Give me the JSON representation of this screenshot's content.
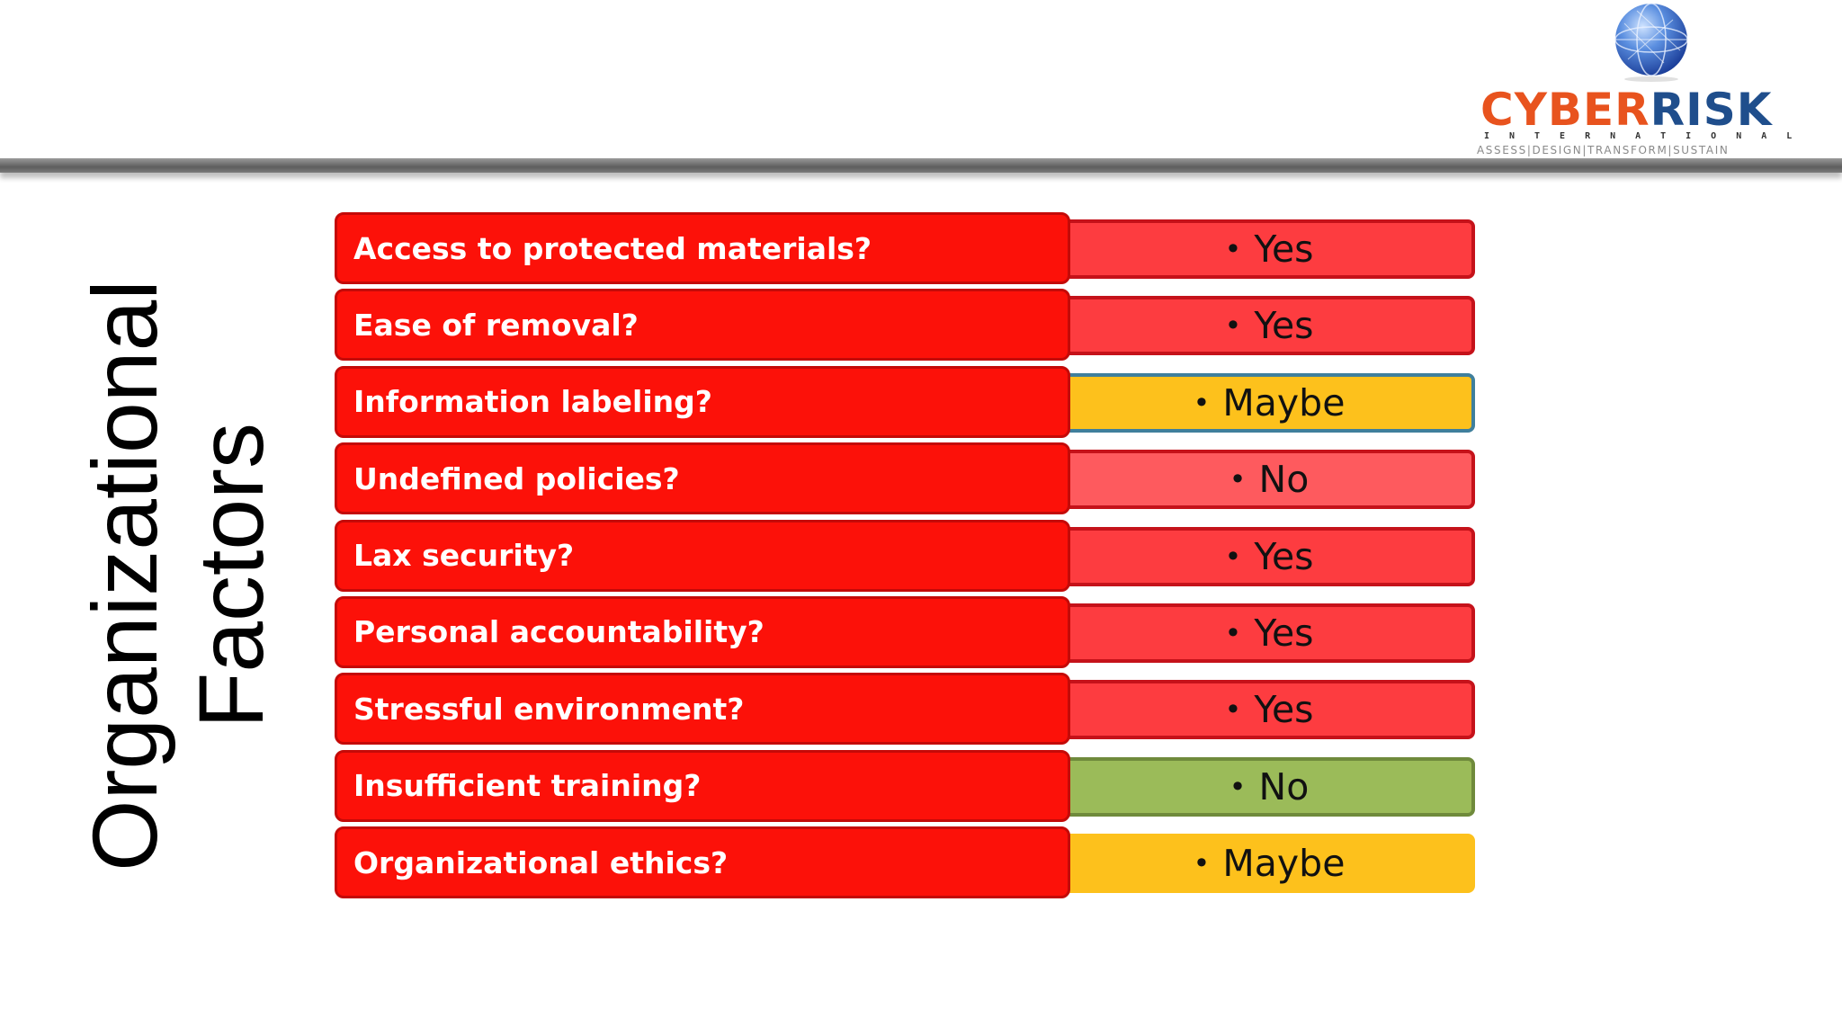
{
  "logo": {
    "word_cyber": "CYBER",
    "word_risk": "RISK",
    "international": "INTERNATIONAL",
    "tagline": "ASSESS|DESIGN|TRANSFORM|SUSTAIN",
    "icon": "globe-icon"
  },
  "title": {
    "line1": "Organizational",
    "line2": "Factors"
  },
  "colors": {
    "question_fill": "#fc1109",
    "question_border": "#c40a08",
    "yes_fill": "#fd3c40",
    "no_light_fill": "#fe5a5e",
    "maybe_fill": "#fdc11c",
    "no_green_fill": "#9bbb59"
  },
  "rows": [
    {
      "question": "Access to protected materials?",
      "answer": "Yes",
      "bullet": "•",
      "fill": "#fd3c40",
      "border": "#c5121a"
    },
    {
      "question": "Ease of removal?",
      "answer": "Yes",
      "bullet": "•",
      "fill": "#fd3c40",
      "border": "#c5121a"
    },
    {
      "question": "Information labeling?",
      "answer": "Maybe",
      "bullet": "•",
      "fill": "#fdc11c",
      "border": "#3f7f9c"
    },
    {
      "question": "Undefined policies?",
      "answer": "No",
      "bullet": "•",
      "fill": "#fe5a5e",
      "border": "#c5121a"
    },
    {
      "question": "Lax security?",
      "answer": "Yes",
      "bullet": "•",
      "fill": "#fd3c40",
      "border": "#c5121a"
    },
    {
      "question": "Personal accountability?",
      "answer": "Yes",
      "bullet": "•",
      "fill": "#fd3c40",
      "border": "#c5121a"
    },
    {
      "question": "Stressful environment?",
      "answer": "Yes",
      "bullet": "•",
      "fill": "#fd3c40",
      "border": "#c5121a"
    },
    {
      "question": "Insufficient training?",
      "answer": "No",
      "bullet": "•",
      "fill": "#9bbb59",
      "border": "#6f8a3c"
    },
    {
      "question": "Organizational ethics?",
      "answer": "Maybe",
      "bullet": "•",
      "fill": "#fdc11c",
      "border": "#fdc11c"
    }
  ]
}
